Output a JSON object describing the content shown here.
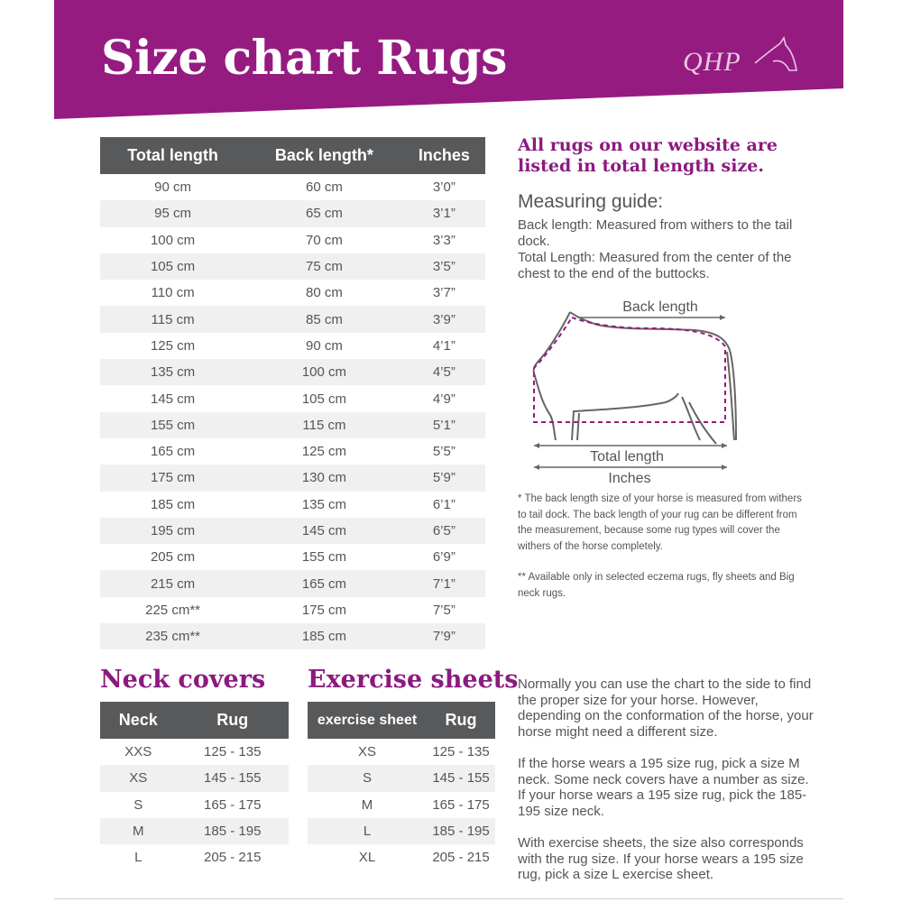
{
  "header": {
    "title": "Size chart Rugs",
    "logo_text": "QHP",
    "bg_color": "#951b81"
  },
  "main_table": {
    "headers": [
      "Total length",
      "Back length*",
      "Inches"
    ],
    "rows": [
      [
        "90 cm",
        "60 cm",
        "3’0”"
      ],
      [
        "95 cm",
        "65 cm",
        "3’1”"
      ],
      [
        "100 cm",
        "70 cm",
        "3’3”"
      ],
      [
        "105 cm",
        "75 cm",
        "3’5”"
      ],
      [
        "110 cm",
        "80 cm",
        "3’7”"
      ],
      [
        "115 cm",
        "85 cm",
        "3’9”"
      ],
      [
        "125 cm",
        "90 cm",
        "4’1”"
      ],
      [
        "135 cm",
        "100 cm",
        "4’5”"
      ],
      [
        "145 cm",
        "105 cm",
        "4’9”"
      ],
      [
        "155 cm",
        "115 cm",
        "5’1”"
      ],
      [
        "165 cm",
        "125 cm",
        "5’5”"
      ],
      [
        "175 cm",
        "130 cm",
        "5’9”"
      ],
      [
        "185 cm",
        "135 cm",
        "6’1”"
      ],
      [
        "195 cm",
        "145 cm",
        "6’5”"
      ],
      [
        "205 cm",
        "155 cm",
        "6’9”"
      ],
      [
        "215 cm",
        "165 cm",
        "7’1”"
      ],
      [
        "225 cm**",
        "175 cm",
        "7’5”"
      ],
      [
        "235 cm**",
        "185 cm",
        "7’9”"
      ]
    ]
  },
  "right": {
    "heading": "All rugs on our website are listed in total length size.",
    "guide_title": "Measuring guide:",
    "guide_line1": "Back length: Measured from withers to the tail dock.",
    "guide_line2": "Total Length: Measured from the center of the chest to the end of the buttocks.",
    "diagram_back_label": "Back length",
    "diagram_total_label": "Total length",
    "diagram_inches_label": "Inches",
    "footnote1": "* The back length size of your horse is measured from withers to tail dock. The back length of your rug can be different from the measurement, because some rug types will cover the withers of the horse completely.",
    "footnote2": "** Available only in selected eczema rugs, fly sheets and Big neck rugs.",
    "para1": "Normally you can use the chart to the side to find the proper size for your horse.  However, depending on the conformation of the horse, your horse might need a different size.",
    "para2": "If the horse wears a 195 size rug, pick a size M neck. Some neck covers have a number as size. If your horse wears a 195 size rug, pick the 185-195 size neck.",
    "para3": "With exercise sheets, the size also corresponds with the rug size. If your horse wears a 195 size rug, pick a size L exercise sheet."
  },
  "neck": {
    "title": "Neck covers",
    "headers": [
      "Neck",
      "Rug"
    ],
    "rows": [
      [
        "XXS",
        "125 - 135"
      ],
      [
        "XS",
        "145 - 155"
      ],
      [
        "S",
        "165 - 175"
      ],
      [
        "M",
        "185 - 195"
      ],
      [
        "L",
        "205 - 215"
      ]
    ]
  },
  "exercise": {
    "title": "Exercise sheets",
    "headers": [
      "exercise sheet",
      "Rug"
    ],
    "rows": [
      [
        "XS",
        "125 - 135"
      ],
      [
        "S",
        "145 - 155"
      ],
      [
        "M",
        "165 - 175"
      ],
      [
        "L",
        "185 - 195"
      ],
      [
        "XL",
        "205 - 215"
      ]
    ]
  }
}
